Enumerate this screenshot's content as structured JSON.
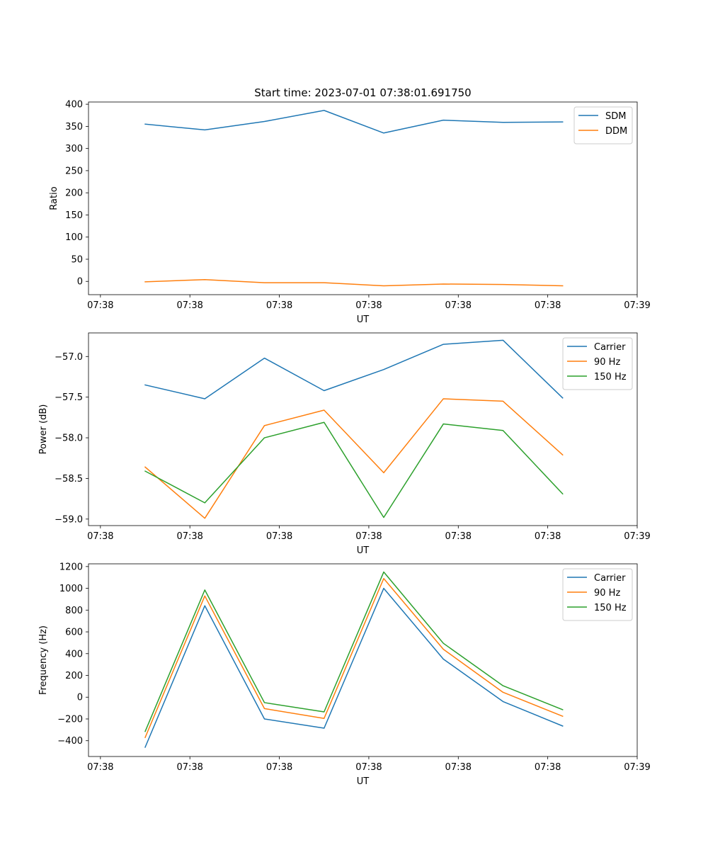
{
  "figure": {
    "title": "Start time: 2023-07-01 07:38:01.691750"
  },
  "chart_data": [
    {
      "type": "line",
      "xlabel": "UT",
      "ylabel": "Ratio",
      "x_ticks": [
        "07:38",
        "07:38",
        "07:38",
        "07:38",
        "07:38",
        "07:38",
        "07:39"
      ],
      "x_tick_pos": [
        -0.5,
        1.0,
        2.5,
        4.0,
        5.5,
        7.0,
        8.5
      ],
      "xlim": [
        -0.7,
        8.5
      ],
      "x": [
        0.25,
        1.25,
        2.25,
        3.25,
        4.25,
        5.25,
        6.25,
        7.25
      ],
      "ylim": [
        -30,
        405
      ],
      "y_ticks": [
        0,
        50,
        100,
        150,
        200,
        250,
        300,
        350,
        400
      ],
      "y_tick_labels": [
        "0",
        "50",
        "100",
        "150",
        "200",
        "250",
        "300",
        "350",
        "400"
      ],
      "legend_position": "top-right",
      "series": [
        {
          "name": "SDM",
          "color": "#1f77b4",
          "values": [
            355,
            342,
            361,
            386,
            335,
            364,
            359,
            360
          ]
        },
        {
          "name": "DDM",
          "color": "#ff7f0e",
          "values": [
            -1,
            4,
            -3,
            -3,
            -10,
            -6,
            -7,
            -10
          ]
        }
      ]
    },
    {
      "type": "line",
      "xlabel": "UT",
      "ylabel": "Power (dB)",
      "x_ticks": [
        "07:38",
        "07:38",
        "07:38",
        "07:38",
        "07:38",
        "07:38",
        "07:39"
      ],
      "x_tick_pos": [
        -0.5,
        1.0,
        2.5,
        4.0,
        5.5,
        7.0,
        8.5
      ],
      "xlim": [
        -0.7,
        8.5
      ],
      "x": [
        0.25,
        1.25,
        2.25,
        3.25,
        4.25,
        5.25,
        6.25,
        7.25
      ],
      "ylim": [
        -59.08,
        -56.71
      ],
      "y_ticks": [
        -59.0,
        -58.5,
        -58.0,
        -57.5,
        -57.0
      ],
      "y_tick_labels": [
        "−59.0",
        "−58.5",
        "−58.0",
        "−57.5",
        "−57.0"
      ],
      "legend_position": "top-right",
      "series": [
        {
          "name": "Carrier",
          "color": "#1f77b4",
          "values": [
            -57.35,
            -57.52,
            -57.02,
            -57.42,
            -57.16,
            -56.85,
            -56.8,
            -57.51
          ]
        },
        {
          "name": "90 Hz",
          "color": "#ff7f0e",
          "values": [
            -58.36,
            -58.99,
            -57.85,
            -57.66,
            -58.43,
            -57.52,
            -57.55,
            -58.21
          ]
        },
        {
          "name": "150 Hz",
          "color": "#2ca02c",
          "values": [
            -58.41,
            -58.8,
            -58.0,
            -57.81,
            -58.98,
            -57.83,
            -57.91,
            -58.69
          ]
        }
      ]
    },
    {
      "type": "line",
      "xlabel": "UT",
      "ylabel": "Frequency (Hz)",
      "x_ticks": [
        "07:38",
        "07:38",
        "07:38",
        "07:38",
        "07:38",
        "07:38",
        "07:39"
      ],
      "x_tick_pos": [
        -0.5,
        1.0,
        2.5,
        4.0,
        5.5,
        7.0,
        8.5
      ],
      "xlim": [
        -0.7,
        8.5
      ],
      "x": [
        0.25,
        1.25,
        2.25,
        3.25,
        4.25,
        5.25,
        6.25,
        7.25
      ],
      "ylim": [
        -545,
        1225
      ],
      "y_ticks": [
        -400,
        -200,
        0,
        200,
        400,
        600,
        800,
        1000,
        1200
      ],
      "y_tick_labels": [
        "−400",
        "−200",
        "0",
        "200",
        "400",
        "600",
        "800",
        "1000",
        "1200"
      ],
      "legend_position": "top-right",
      "series": [
        {
          "name": "Carrier",
          "color": "#1f77b4",
          "values": [
            -460,
            840,
            -200,
            -285,
            1000,
            350,
            -40,
            -265
          ]
        },
        {
          "name": "90 Hz",
          "color": "#ff7f0e",
          "values": [
            -370,
            930,
            -105,
            -195,
            1090,
            440,
            45,
            -175
          ]
        },
        {
          "name": "150 Hz",
          "color": "#2ca02c",
          "values": [
            -315,
            985,
            -50,
            -135,
            1150,
            495,
            105,
            -115
          ]
        }
      ]
    }
  ]
}
